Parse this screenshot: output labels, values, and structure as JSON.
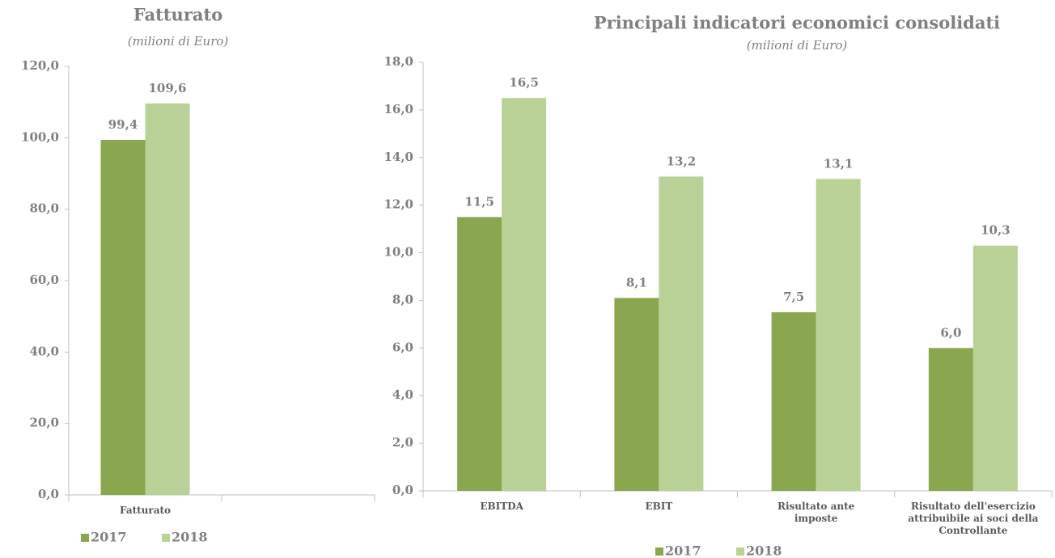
{
  "chart_data": [
    {
      "type": "bar",
      "title": "Fatturato",
      "subtitle": "(milioni di Euro)",
      "categories": [
        "Fatturato",
        null
      ],
      "series": [
        {
          "name": "2017",
          "color": "#8aa64e",
          "values": [
            99.4,
            null
          ],
          "value_labels": [
            "99,4",
            null
          ]
        },
        {
          "name": "2018",
          "color": "#b9d097",
          "values": [
            109.6,
            null
          ],
          "value_labels": [
            "109,6",
            null
          ]
        }
      ],
      "ylim": [
        0,
        120
      ],
      "yticks": [
        {
          "value": 0,
          "label": "0,0"
        },
        {
          "value": 20,
          "label": "20,0"
        },
        {
          "value": 40,
          "label": "40,0"
        },
        {
          "value": 60,
          "label": "60,0"
        },
        {
          "value": 80,
          "label": "80,0"
        },
        {
          "value": 100,
          "label": "100,0"
        },
        {
          "value": 120,
          "label": "120,0"
        }
      ],
      "grid": false,
      "legend": "bottom"
    },
    {
      "type": "bar",
      "title": "Principali indicatori economici consolidati",
      "subtitle": "(milioni di Euro)",
      "categories": [
        "EBITDA",
        "EBIT",
        "Risultato ante imposte",
        "Risultato dell'esercizio attribuibile ai soci della Controllante"
      ],
      "series": [
        {
          "name": "2017",
          "color": "#8aa64e",
          "values": [
            11.5,
            8.1,
            7.5,
            6.0
          ],
          "value_labels": [
            "11,5",
            "8,1",
            "7,5",
            "6,0"
          ]
        },
        {
          "name": "2018",
          "color": "#b9d097",
          "values": [
            16.5,
            13.2,
            13.1,
            10.3
          ],
          "value_labels": [
            "16,5",
            "13,2",
            "13,1",
            "10,3"
          ]
        }
      ],
      "ylim": [
        0,
        18
      ],
      "yticks": [
        {
          "value": 0,
          "label": "0,0"
        },
        {
          "value": 2,
          "label": "2,0"
        },
        {
          "value": 4,
          "label": "4,0"
        },
        {
          "value": 6,
          "label": "6,0"
        },
        {
          "value": 8,
          "label": "8,0"
        },
        {
          "value": 10,
          "label": "10,0"
        },
        {
          "value": 12,
          "label": "12,0"
        },
        {
          "value": 14,
          "label": "14,0"
        },
        {
          "value": 16,
          "label": "16,0"
        },
        {
          "value": 18,
          "label": "18,0"
        }
      ],
      "grid": false,
      "legend": "bottom"
    }
  ]
}
